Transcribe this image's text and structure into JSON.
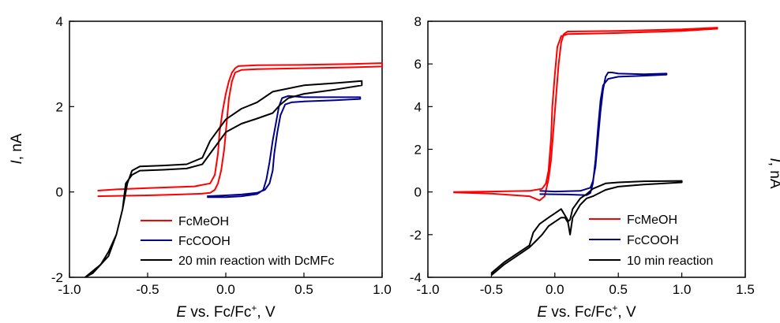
{
  "colors": {
    "FcMeOH": "#ff0000",
    "FcCOOH": "#00008b",
    "reaction": "#000000",
    "axis": "#000000"
  },
  "chart_data": [
    {
      "type": "line",
      "xlabel": {
        "italic": "E",
        "rest": " vs. Fc/Fc",
        "sup": "+",
        "tail": ", V"
      },
      "ylabel": {
        "italic": "I",
        "rest": ", nA"
      },
      "xlim": [
        -1.0,
        1.0
      ],
      "ylim": [
        -2,
        4
      ],
      "xticks": [
        -1.0,
        -0.5,
        0.0,
        0.5,
        1.0
      ],
      "xtick_labels": [
        "-1.0",
        "-0.5",
        "0.0",
        "0.5",
        "1.0"
      ],
      "yticks": [
        -2,
        0,
        2,
        4
      ],
      "ytick_labels": [
        "-2",
        "0",
        "2",
        "4"
      ],
      "legend_position": "bottom-left",
      "series": [
        {
          "name": "FcMeOH",
          "color": "#ff0000",
          "points": [
            [
              -0.82,
              -0.1
            ],
            [
              -0.5,
              -0.08
            ],
            [
              -0.3,
              -0.06
            ],
            [
              -0.15,
              -0.04
            ],
            [
              -0.1,
              -0.02
            ],
            [
              -0.07,
              0.05
            ],
            [
              -0.05,
              0.2
            ],
            [
              -0.03,
              0.5
            ],
            [
              -0.01,
              1.0
            ],
            [
              0.0,
              1.4
            ],
            [
              0.01,
              1.8
            ],
            [
              0.02,
              2.2
            ],
            [
              0.04,
              2.6
            ],
            [
              0.06,
              2.8
            ],
            [
              0.1,
              2.86
            ],
            [
              0.2,
              2.88
            ],
            [
              0.5,
              2.9
            ],
            [
              0.8,
              2.92
            ],
            [
              1.0,
              2.94
            ],
            [
              1.0,
              3.02
            ],
            [
              0.8,
              3.0
            ],
            [
              0.5,
              2.98
            ],
            [
              0.2,
              2.97
            ],
            [
              0.08,
              2.95
            ],
            [
              0.06,
              2.9
            ],
            [
              0.04,
              2.8
            ],
            [
              0.02,
              2.6
            ],
            [
              0.0,
              2.3
            ],
            [
              -0.02,
              1.9
            ],
            [
              -0.04,
              1.4
            ],
            [
              -0.05,
              0.9
            ],
            [
              -0.07,
              0.4
            ],
            [
              -0.1,
              0.2
            ],
            [
              -0.2,
              0.13
            ],
            [
              -0.5,
              0.09
            ],
            [
              -0.7,
              0.06
            ],
            [
              -0.82,
              0.03
            ]
          ]
        },
        {
          "name": "FcCOOH",
          "color": "#00008b",
          "points": [
            [
              -0.12,
              -0.1
            ],
            [
              0.0,
              -0.08
            ],
            [
              0.1,
              -0.06
            ],
            [
              0.2,
              -0.02
            ],
            [
              0.25,
              0.05
            ],
            [
              0.28,
              0.2
            ],
            [
              0.3,
              0.5
            ],
            [
              0.31,
              0.9
            ],
            [
              0.33,
              1.4
            ],
            [
              0.35,
              1.8
            ],
            [
              0.38,
              2.05
            ],
            [
              0.42,
              2.1
            ],
            [
              0.5,
              2.12
            ],
            [
              0.7,
              2.15
            ],
            [
              0.86,
              2.18
            ],
            [
              0.86,
              2.22
            ],
            [
              0.7,
              2.22
            ],
            [
              0.5,
              2.22
            ],
            [
              0.4,
              2.25
            ],
            [
              0.36,
              2.2
            ],
            [
              0.34,
              2.0
            ],
            [
              0.32,
              1.6
            ],
            [
              0.3,
              1.2
            ],
            [
              0.28,
              0.7
            ],
            [
              0.26,
              0.3
            ],
            [
              0.24,
              0.05
            ],
            [
              0.2,
              -0.05
            ],
            [
              0.1,
              -0.1
            ],
            [
              0.0,
              -0.12
            ],
            [
              -0.12,
              -0.12
            ]
          ]
        },
        {
          "name": "20 min reaction with DcMFc",
          "color": "#000000",
          "points": [
            [
              -0.9,
              -2.0
            ],
            [
              -0.85,
              -1.9
            ],
            [
              -0.8,
              -1.7
            ],
            [
              -0.75,
              -1.5
            ],
            [
              -0.7,
              -1.0
            ],
            [
              -0.66,
              -0.4
            ],
            [
              -0.64,
              0.2
            ],
            [
              -0.6,
              0.4
            ],
            [
              -0.55,
              0.5
            ],
            [
              -0.4,
              0.52
            ],
            [
              -0.25,
              0.55
            ],
            [
              -0.15,
              0.65
            ],
            [
              -0.1,
              0.9
            ],
            [
              -0.05,
              1.15
            ],
            [
              0.0,
              1.4
            ],
            [
              0.1,
              1.6
            ],
            [
              0.2,
              1.72
            ],
            [
              0.3,
              1.85
            ],
            [
              0.35,
              2.05
            ],
            [
              0.4,
              2.2
            ],
            [
              0.5,
              2.3
            ],
            [
              0.7,
              2.4
            ],
            [
              0.87,
              2.5
            ],
            [
              0.87,
              2.6
            ],
            [
              0.7,
              2.55
            ],
            [
              0.5,
              2.5
            ],
            [
              0.3,
              2.35
            ],
            [
              0.2,
              2.1
            ],
            [
              0.1,
              1.95
            ],
            [
              0.0,
              1.7
            ],
            [
              -0.1,
              1.2
            ],
            [
              -0.15,
              0.8
            ],
            [
              -0.25,
              0.65
            ],
            [
              -0.4,
              0.62
            ],
            [
              -0.55,
              0.6
            ],
            [
              -0.6,
              0.5
            ],
            [
              -0.63,
              0.2
            ],
            [
              -0.66,
              -0.4
            ],
            [
              -0.7,
              -1.0
            ],
            [
              -0.75,
              -1.4
            ],
            [
              -0.8,
              -1.7
            ],
            [
              -0.9,
              -2.0
            ]
          ]
        }
      ]
    },
    {
      "type": "line",
      "xlabel": {
        "italic": "E",
        "rest": " vs. Fc/Fc",
        "sup": "+",
        "tail": ", V"
      },
      "ylabel": {
        "italic": "I",
        "rest": ", nA"
      },
      "xlim": [
        -1.0,
        1.5
      ],
      "ylim": [
        -4,
        8
      ],
      "xticks": [
        -1.0,
        -0.5,
        0.0,
        0.5,
        1.0,
        1.5
      ],
      "xtick_labels": [
        "-1.0",
        "-0.5",
        "0.0",
        "0.5",
        "1.0",
        "1.5"
      ],
      "yticks": [
        -4,
        -2,
        0,
        2,
        4,
        6,
        8
      ],
      "ytick_labels": [
        "-4",
        "-2",
        "0",
        "2",
        "4",
        "6",
        "8"
      ],
      "legend_position": "bottom-right",
      "series": [
        {
          "name": "FcMeOH",
          "color": "#ff0000",
          "points": [
            [
              -0.8,
              0.0
            ],
            [
              -0.5,
              0.02
            ],
            [
              -0.2,
              0.05
            ],
            [
              -0.1,
              0.15
            ],
            [
              -0.07,
              0.4
            ],
            [
              -0.05,
              1.0
            ],
            [
              -0.03,
              2.5
            ],
            [
              -0.02,
              4.0
            ],
            [
              0.0,
              5.5
            ],
            [
              0.02,
              6.8
            ],
            [
              0.05,
              7.3
            ],
            [
              0.1,
              7.4
            ],
            [
              0.5,
              7.45
            ],
            [
              1.0,
              7.55
            ],
            [
              1.28,
              7.65
            ],
            [
              1.28,
              7.7
            ],
            [
              1.0,
              7.62
            ],
            [
              0.5,
              7.55
            ],
            [
              0.1,
              7.52
            ],
            [
              0.07,
              7.4
            ],
            [
              0.05,
              7.0
            ],
            [
              0.03,
              6.0
            ],
            [
              0.01,
              4.5
            ],
            [
              -0.01,
              3.0
            ],
            [
              -0.03,
              1.5
            ],
            [
              -0.05,
              0.6
            ],
            [
              -0.08,
              -0.2
            ],
            [
              -0.12,
              -0.4
            ],
            [
              -0.2,
              -0.2
            ],
            [
              -0.5,
              -0.08
            ],
            [
              -0.8,
              -0.02
            ]
          ]
        },
        {
          "name": "FcCOOH",
          "color": "#00008b",
          "points": [
            [
              -0.12,
              -0.1
            ],
            [
              0.1,
              -0.12
            ],
            [
              0.25,
              -0.15
            ],
            [
              0.28,
              -0.05
            ],
            [
              0.3,
              0.4
            ],
            [
              0.32,
              1.5
            ],
            [
              0.34,
              3.0
            ],
            [
              0.36,
              4.3
            ],
            [
              0.38,
              5.0
            ],
            [
              0.42,
              5.3
            ],
            [
              0.5,
              5.4
            ],
            [
              0.7,
              5.45
            ],
            [
              0.88,
              5.5
            ],
            [
              0.88,
              5.55
            ],
            [
              0.7,
              5.52
            ],
            [
              0.5,
              5.55
            ],
            [
              0.45,
              5.6
            ],
            [
              0.42,
              5.6
            ],
            [
              0.4,
              5.4
            ],
            [
              0.38,
              4.8
            ],
            [
              0.36,
              3.8
            ],
            [
              0.34,
              2.5
            ],
            [
              0.32,
              1.2
            ],
            [
              0.3,
              0.5
            ],
            [
              0.28,
              0.2
            ],
            [
              0.2,
              0.05
            ],
            [
              0.0,
              0.02
            ],
            [
              -0.12,
              0.05
            ]
          ]
        },
        {
          "name": "10 min reaction",
          "color": "#000000",
          "points": [
            [
              -0.5,
              -3.8
            ],
            [
              -0.4,
              -3.3
            ],
            [
              -0.3,
              -2.9
            ],
            [
              -0.25,
              -2.7
            ],
            [
              -0.2,
              -2.5
            ],
            [
              -0.17,
              -1.9
            ],
            [
              -0.12,
              -1.5
            ],
            [
              -0.05,
              -1.2
            ],
            [
              0.0,
              -1.0
            ],
            [
              0.05,
              -0.8
            ],
            [
              0.08,
              -1.1
            ],
            [
              0.1,
              -1.3
            ],
            [
              0.12,
              -2.0
            ],
            [
              0.14,
              -1.2
            ],
            [
              0.2,
              -0.6
            ],
            [
              0.25,
              -0.3
            ],
            [
              0.3,
              -0.2
            ],
            [
              0.4,
              0.1
            ],
            [
              0.5,
              0.25
            ],
            [
              0.7,
              0.35
            ],
            [
              1.0,
              0.45
            ],
            [
              1.0,
              0.52
            ],
            [
              0.7,
              0.5
            ],
            [
              0.5,
              0.45
            ],
            [
              0.4,
              0.4
            ],
            [
              0.3,
              0.15
            ],
            [
              0.25,
              -0.1
            ],
            [
              0.2,
              -0.3
            ],
            [
              0.14,
              -0.8
            ],
            [
              0.12,
              -1.3
            ],
            [
              0.1,
              -1.4
            ],
            [
              0.08,
              -1.2
            ],
            [
              0.05,
              -1.2
            ],
            [
              0.0,
              -1.4
            ],
            [
              -0.05,
              -1.6
            ],
            [
              -0.1,
              -2.0
            ],
            [
              -0.15,
              -2.3
            ],
            [
              -0.2,
              -2.6
            ],
            [
              -0.3,
              -3.0
            ],
            [
              -0.4,
              -3.4
            ],
            [
              -0.5,
              -3.9
            ]
          ]
        }
      ]
    }
  ]
}
